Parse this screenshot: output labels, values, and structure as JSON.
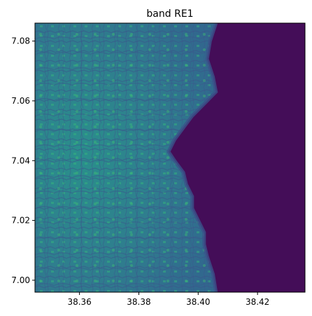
{
  "chart_data": {
    "type": "heatmap",
    "title": "band RE1",
    "xlabel": "",
    "ylabel": "",
    "xlim": [
      38.345,
      38.436
    ],
    "ylim": [
      6.996,
      7.086
    ],
    "x_ticks": [
      38.36,
      38.38,
      38.4,
      38.42
    ],
    "x_tick_labels": [
      "38.36",
      "38.38",
      "38.40",
      "38.42"
    ],
    "y_ticks": [
      7.0,
      7.02,
      7.04,
      7.06,
      7.08
    ],
    "y_tick_labels": [
      "7.00",
      "7.02",
      "7.04",
      "7.06",
      "7.08"
    ],
    "colormap": "viridis",
    "colors": {
      "water": "#440d58",
      "land_base": "#2f6f8e",
      "land_mid": "#2a8f8c",
      "land_bright": "#35b37e",
      "lowland": "#3b528b"
    },
    "grid": false,
    "colorbar": false,
    "shoreline": [
      [
        38.406,
        7.086
      ],
      [
        38.404,
        7.08
      ],
      [
        38.403,
        7.074
      ],
      [
        38.405,
        7.068
      ],
      [
        38.406,
        7.063
      ],
      [
        38.402,
        7.059
      ],
      [
        38.398,
        7.055
      ],
      [
        38.395,
        7.051
      ],
      [
        38.392,
        7.047
      ],
      [
        38.39,
        7.043
      ],
      [
        38.392,
        7.04
      ],
      [
        38.395,
        7.036
      ],
      [
        38.396,
        7.032
      ],
      [
        38.398,
        7.028
      ],
      [
        38.398,
        7.024
      ],
      [
        38.4,
        7.02
      ],
      [
        38.402,
        7.016
      ],
      [
        38.402,
        7.012
      ],
      [
        38.403,
        7.008
      ],
      [
        38.405,
        7.002
      ],
      [
        38.406,
        6.996
      ]
    ]
  }
}
